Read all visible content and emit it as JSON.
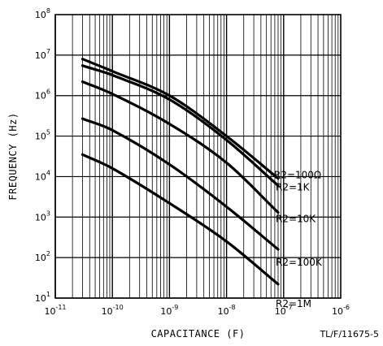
{
  "chart_data": {
    "type": "line",
    "title": "",
    "xlabel": "CAPACITANCE (F)",
    "ylabel": "FREQUENCY (Hz)",
    "x_scale": "log",
    "y_scale": "log",
    "xlim": [
      1e-11,
      1e-06
    ],
    "ylim": [
      10,
      100000000
    ],
    "grid": true,
    "x_ticks": [
      {
        "base": "10",
        "exp": "-11"
      },
      {
        "base": "10",
        "exp": "-10"
      },
      {
        "base": "10",
        "exp": "-9"
      },
      {
        "base": "10",
        "exp": "-8"
      },
      {
        "base": "10",
        "exp": "-7"
      },
      {
        "base": "10",
        "exp": "-6"
      }
    ],
    "y_ticks": [
      {
        "base": "10",
        "exp": "1"
      },
      {
        "base": "10",
        "exp": "2"
      },
      {
        "base": "10",
        "exp": "3"
      },
      {
        "base": "10",
        "exp": "4"
      },
      {
        "base": "10",
        "exp": "5"
      },
      {
        "base": "10",
        "exp": "6"
      },
      {
        "base": "10",
        "exp": "7"
      },
      {
        "base": "10",
        "exp": "8"
      }
    ],
    "series": [
      {
        "name": "R2=100Ω",
        "points": [
          [
            3e-11,
            8000000
          ],
          [
            1e-10,
            4000000
          ],
          [
            1e-09,
            1000000
          ],
          [
            1e-08,
            100000
          ],
          [
            8e-08,
            9000
          ]
        ]
      },
      {
        "name": "R2=1K",
        "points": [
          [
            3e-11,
            5500000
          ],
          [
            1e-10,
            3200000
          ],
          [
            1e-09,
            800000
          ],
          [
            1e-08,
            80000
          ],
          [
            8e-08,
            6000
          ]
        ]
      },
      {
        "name": "R2=10K",
        "points": [
          [
            3e-11,
            2200000
          ],
          [
            1e-10,
            1100000
          ],
          [
            1e-09,
            200000
          ],
          [
            1e-08,
            22000
          ],
          [
            8e-08,
            1300
          ]
        ]
      },
      {
        "name": "R2=100K",
        "points": [
          [
            3e-11,
            270000
          ],
          [
            1e-10,
            140000
          ],
          [
            1e-09,
            20000
          ],
          [
            1e-08,
            1800
          ],
          [
            8e-08,
            160
          ]
        ]
      },
      {
        "name": "R2=1M",
        "points": [
          [
            3e-11,
            35000
          ],
          [
            1e-10,
            16000
          ],
          [
            1e-09,
            2200
          ],
          [
            1e-08,
            250
          ],
          [
            8e-08,
            22
          ]
        ]
      }
    ]
  },
  "figure_id": "TL/F/11675-5"
}
